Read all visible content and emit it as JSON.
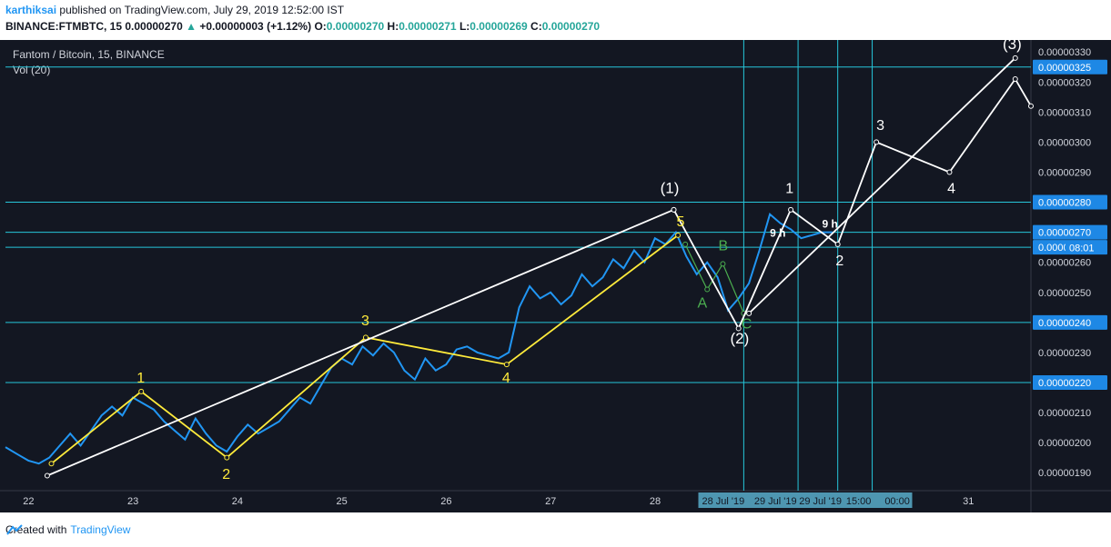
{
  "header": {
    "user": "karthiksai",
    "published": "published on TradingView.com, July 29, 2019 12:52:00 IST",
    "symbol": "BINANCE:FTMBTC, 15",
    "last": "0.00000270",
    "change": "+0.00000003 (+1.12%)",
    "o_label": "O:",
    "o": "0.00000270",
    "h_label": "H:",
    "h": "0.00000271",
    "l_label": "L:",
    "l": "0.00000269",
    "c_label": "C:",
    "c": "0.00000270"
  },
  "legend": {
    "title": "Fantom / Bitcoin, 15, BINANCE",
    "vol": "Vol (20)"
  },
  "footer": {
    "created": "Created with",
    "brand": "TradingView"
  },
  "colors": {
    "bg": "#131722",
    "price": "#2196f3",
    "hline": "#26c6da",
    "yellow": "#ffeb3b",
    "green": "#4caf50",
    "white": "#ffffff",
    "volume_up": "#26a69a",
    "volume_down": "#ef5350"
  },
  "chart_data": {
    "type": "line",
    "title": "Fantom / Bitcoin, 15, BINANCE",
    "x_ticks": [
      "22",
      "23",
      "24",
      "25",
      "26",
      "27",
      "28",
      "31"
    ],
    "x_tick_days": [
      22,
      23,
      24,
      25,
      26,
      27,
      28,
      31
    ],
    "x_range_days": [
      21.78,
      31.6
    ],
    "ylim": [
      1.84e-06,
      3.34e-06
    ],
    "y_ticks": [
      "0.00000330",
      "0.00000320",
      "0.00000310",
      "0.00000300",
      "0.00000290",
      "0.00000280",
      "0.00000270",
      "0.00000265",
      "0.00000260",
      "0.00000250",
      "0.00000240",
      "0.00000230",
      "0.00000220",
      "0.00000210",
      "0.00000200",
      "0.00000190"
    ],
    "y_tick_values": [
      3.3e-06,
      3.2e-06,
      3.1e-06,
      3e-06,
      2.9e-06,
      2.8e-06,
      2.7e-06,
      2.65e-06,
      2.6e-06,
      2.5e-06,
      2.4e-06,
      2.3e-06,
      2.2e-06,
      2.1e-06,
      2e-06,
      1.9e-06
    ],
    "highlighted_levels": [
      {
        "label": "0.00000325",
        "value": 3.25e-06
      },
      {
        "label": "0.00000280",
        "value": 2.8e-06
      },
      {
        "label": "0.00000270",
        "value": 2.7e-06
      },
      {
        "label": "0.00000265",
        "value": 2.65e-06
      },
      {
        "label": "0.00000240",
        "value": 2.4e-06
      },
      {
        "label": "0.00000220",
        "value": 2.2e-06
      }
    ],
    "current_price_countdown": "08:01",
    "x_time_badges": [
      "28 Jul '19",
      "29 Jul '19",
      "29 Jul '19",
      "15:00",
      "00:00"
    ],
    "vertical_line_days": [
      28.85,
      29.37,
      29.75,
      30.08
    ],
    "price_series": {
      "name": "FTMBTC",
      "x": [
        21.78,
        21.9,
        22.0,
        22.1,
        22.2,
        22.3,
        22.4,
        22.5,
        22.6,
        22.7,
        22.8,
        22.9,
        23.0,
        23.1,
        23.2,
        23.3,
        23.4,
        23.5,
        23.6,
        23.7,
        23.8,
        23.9,
        24.0,
        24.1,
        24.2,
        24.3,
        24.4,
        24.5,
        24.6,
        24.7,
        24.8,
        24.9,
        25.0,
        25.1,
        25.2,
        25.3,
        25.4,
        25.5,
        25.6,
        25.7,
        25.8,
        25.9,
        26.0,
        26.1,
        26.2,
        26.3,
        26.4,
        26.5,
        26.6,
        26.7,
        26.8,
        26.9,
        27.0,
        27.1,
        27.2,
        27.3,
        27.4,
        27.5,
        27.6,
        27.7,
        27.8,
        27.9,
        28.0,
        28.1,
        28.2,
        28.3,
        28.4,
        28.5,
        28.6,
        28.7,
        28.8,
        28.9,
        29.0,
        29.1,
        29.2,
        29.3,
        29.4,
        29.5,
        29.6,
        29.7
      ],
      "y": [
        1.985e-06,
        1.96e-06,
        1.94e-06,
        1.93e-06,
        1.95e-06,
        1.99e-06,
        2.03e-06,
        1.99e-06,
        2.04e-06,
        2.09e-06,
        2.12e-06,
        2.09e-06,
        2.15e-06,
        2.13e-06,
        2.11e-06,
        2.07e-06,
        2.04e-06,
        2.01e-06,
        2.08e-06,
        2.03e-06,
        1.99e-06,
        1.97e-06,
        2.02e-06,
        2.06e-06,
        2.03e-06,
        2.05e-06,
        2.07e-06,
        2.11e-06,
        2.15e-06,
        2.13e-06,
        2.19e-06,
        2.25e-06,
        2.28e-06,
        2.26e-06,
        2.32e-06,
        2.29e-06,
        2.33e-06,
        2.3e-06,
        2.24e-06,
        2.21e-06,
        2.28e-06,
        2.24e-06,
        2.26e-06,
        2.31e-06,
        2.32e-06,
        2.3e-06,
        2.29e-06,
        2.28e-06,
        2.3e-06,
        2.45e-06,
        2.52e-06,
        2.48e-06,
        2.5e-06,
        2.46e-06,
        2.49e-06,
        2.56e-06,
        2.52e-06,
        2.55e-06,
        2.61e-06,
        2.58e-06,
        2.64e-06,
        2.6e-06,
        2.68e-06,
        2.66e-06,
        2.7e-06,
        2.62e-06,
        2.56e-06,
        2.6e-06,
        2.55e-06,
        2.44e-06,
        2.48e-06,
        2.53e-06,
        2.64e-06,
        2.76e-06,
        2.73e-06,
        2.71e-06,
        2.68e-06,
        2.69e-06,
        2.7e-06,
        2.7e-06
      ]
    },
    "volume": [],
    "overlays": {
      "white_degree_1_labels": [
        "(1)",
        "(2)",
        "(3)"
      ],
      "white_minor_labels": [
        "1",
        "2",
        "3",
        "4"
      ],
      "yellow_wave_labels": [
        "1",
        "2",
        "3",
        "4",
        "5"
      ],
      "green_abc_labels": [
        "A",
        "B",
        "C"
      ],
      "time_labels": [
        "9 h",
        "9 h"
      ],
      "white_path_1": {
        "x": [
          22.18,
          28.18
        ],
        "y": [
          1.89e-06,
          2.775e-06
        ]
      },
      "white_path_2": {
        "x": [
          28.18,
          28.8,
          29.3,
          29.75,
          30.12,
          30.82,
          31.45,
          31.6
        ],
        "y": [
          2.775e-06,
          2.38e-06,
          2.775e-06,
          2.66e-06,
          3e-06,
          2.9e-06,
          3.21e-06,
          3.12e-06
        ]
      },
      "white_path_3": {
        "x": [
          28.9,
          31.45
        ],
        "y": [
          2.43e-06,
          3.28e-06
        ]
      },
      "yellow_path": {
        "x": [
          22.22,
          23.08,
          23.9,
          25.23,
          26.58,
          28.22
        ],
        "y": [
          1.93e-06,
          2.17e-06,
          1.95e-06,
          2.35e-06,
          2.26e-06,
          2.69e-06
        ]
      },
      "green_path": {
        "x": [
          28.29,
          28.5,
          28.65,
          28.85
        ],
        "y": [
          2.66e-06,
          2.51e-06,
          2.595e-06,
          2.43e-06
        ]
      }
    }
  }
}
